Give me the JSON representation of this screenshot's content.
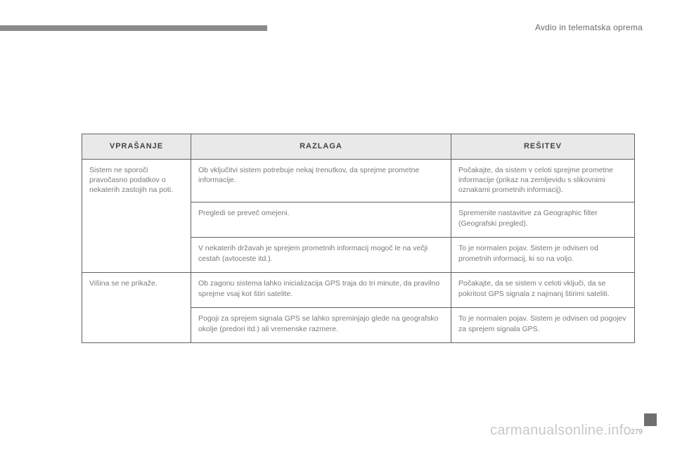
{
  "header": {
    "section_title": "Avdio in telematska oprema"
  },
  "table": {
    "headers": {
      "q": "VPRAŠANJE",
      "r": "RAZLAGA",
      "s": "REŠITEV"
    },
    "rows": {
      "r1": {
        "q": "Sistem ne sporoči pravočasno podatkov o nekaterih zastojih na poti.",
        "cells": {
          "a": {
            "r": "Ob vključitvi sistem potrebuje nekaj trenutkov, da sprejme prometne informacije.",
            "s": "Počakajte, da sistem v celoti sprejme prometne informacije (prikaz na zemljevidu s slikovnimi oznakami prometnih informacij)."
          },
          "b": {
            "r": "Pregledi se preveč omejeni.",
            "s": "Spremenite nastavitve za Geographic filter (Geografski pregled)."
          },
          "c": {
            "r": "V nekaterih državah je sprejem prometnih informacij mogoč le na večji cestah (avtoceste itd.).",
            "s": "To je normalen pojav. Sistem je odvisen od prometnih informacij, ki so na voljo."
          }
        }
      },
      "r2": {
        "q": "Višina se ne prikaže.",
        "cells": {
          "a": {
            "r": "Ob zagonu sistema lahko inicializacija GPS traja do tri minute, da pravilno sprejme vsaj kot štiri satelite.",
            "s": "Počakajte, da se sistem v celoti vključi, da se pokritost GPS signala z najmanj štirimi sateliti."
          },
          "b": {
            "r": "Pogoji za sprejem signala GPS se lahko spreminjajo glede na geografsko okolje (predori itd.) ali vremenske razmere.",
            "s": "To je normalen pojav. Sistem je odvisen od pogojev za sprejem signala GPS."
          }
        }
      }
    }
  },
  "footer": {
    "watermark": "carmanualsonline.info",
    "page_num": "279"
  },
  "colors": {
    "header_bg": "#e9e9e9",
    "border": "#626262",
    "text_body": "#7a7a7a",
    "top_bar": "#8a8a8a"
  }
}
